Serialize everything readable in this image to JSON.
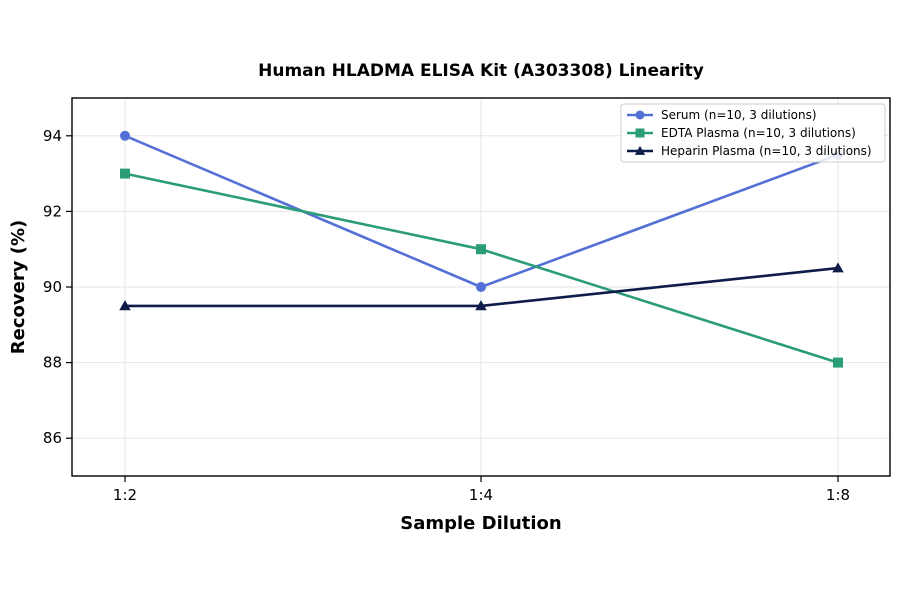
{
  "chart_data": {
    "type": "line",
    "title": "Human HLADMA ELISA Kit (A303308) Linearity",
    "xlabel": "Sample Dilution",
    "ylabel": "Recovery (%)",
    "categories": [
      "1:2",
      "1:4",
      "1:8"
    ],
    "ylim": [
      85,
      95
    ],
    "yticks": [
      86,
      88,
      90,
      92,
      94
    ],
    "grid": true,
    "legend_position": "top-right",
    "series": [
      {
        "name": "Serum (n=10, 3 dilutions)",
        "values": [
          94.0,
          90.0,
          93.5
        ],
        "color": "#5470d6",
        "marker": "circle"
      },
      {
        "name": "EDTA Plasma (n=10, 3 dilutions)",
        "values": [
          93.0,
          91.0,
          88.0
        ],
        "color": "#2a9d78",
        "marker": "square"
      },
      {
        "name": "Heparin Plasma (n=10, 3 dilutions)",
        "values": [
          89.5,
          89.5,
          90.5
        ],
        "color": "#0f1c4a",
        "marker": "triangle"
      }
    ]
  }
}
